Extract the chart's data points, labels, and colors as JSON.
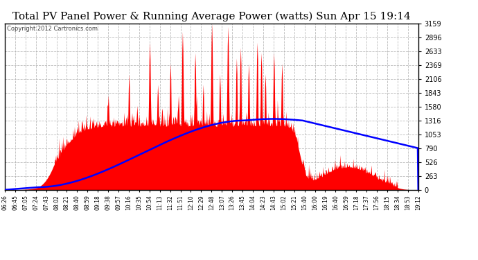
{
  "title": "Total PV Panel Power & Running Average Power (watts) Sun Apr 15 19:14",
  "copyright": "Copyright 2012 Cartronics.com",
  "y_max": 3159.1,
  "y_ticks": [
    0.0,
    263.3,
    526.5,
    789.8,
    1053.0,
    1316.3,
    1579.5,
    1842.8,
    2106.1,
    2369.3,
    2632.6,
    2895.8,
    3159.1
  ],
  "background_color": "#ffffff",
  "plot_bg_color": "#ffffff",
  "grid_color": "#aaaaaa",
  "fill_color": "#ff0000",
  "line_color": "#0000ff",
  "title_fontsize": 11,
  "copyright_fontsize": 6,
  "x_labels": [
    "06:26",
    "06:45",
    "07:05",
    "07:24",
    "07:43",
    "08:02",
    "08:21",
    "08:40",
    "08:59",
    "09:18",
    "09:38",
    "09:57",
    "10:16",
    "10:35",
    "10:54",
    "11:13",
    "11:32",
    "11:51",
    "12:10",
    "12:29",
    "12:48",
    "13:07",
    "13:26",
    "13:45",
    "14:04",
    "14:23",
    "14:43",
    "15:02",
    "15:21",
    "15:40",
    "16:00",
    "16:19",
    "16:40",
    "16:59",
    "17:18",
    "17:37",
    "17:56",
    "18:15",
    "18:34",
    "18:53",
    "19:12"
  ]
}
